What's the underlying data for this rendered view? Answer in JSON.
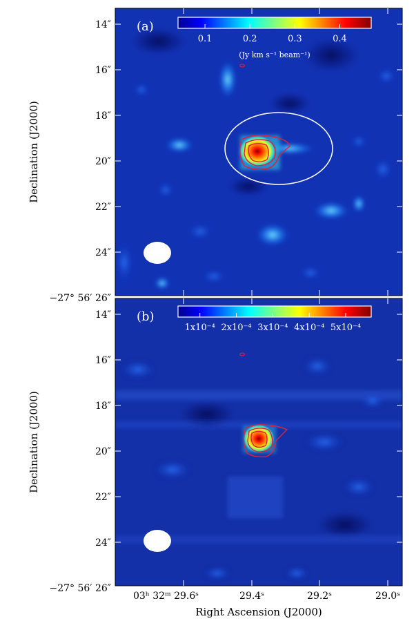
{
  "chart_data": [
    {
      "type": "heatmap",
      "panel_label": "(a)",
      "xlabel": "",
      "ylabel": "Declination (J2000)",
      "y_ticks": [
        "14″",
        "16″",
        "18″",
        "20″",
        "22″",
        "24″",
        "−27° 56′ 26″"
      ],
      "colorbar": {
        "ticks": [
          "0.1",
          "0.2",
          "0.3",
          "0.4"
        ],
        "tick_values": [
          0.1,
          0.2,
          0.3,
          0.4
        ],
        "range": [
          0.04,
          0.47
        ],
        "unit_label": "(Jy km s⁻¹ beam⁻¹)"
      },
      "source_peak": {
        "ra_s": 29.34,
        "dec_arcsec": 19.6
      },
      "aperture_ellipse": true,
      "beam": true
    },
    {
      "type": "heatmap",
      "panel_label": "(b)",
      "xlabel": "Right Ascension (J2000)",
      "ylabel": "Declination (J2000)",
      "x_ticks": [
        "03ʰ 32ᵐ 29.6ˢ",
        "29.4ˢ",
        "29.2ˢ",
        "29.0ˢ"
      ],
      "y_ticks": [
        "14″",
        "16″",
        "18″",
        "20″",
        "22″",
        "24″",
        "−27° 56′ 26″"
      ],
      "colorbar": {
        "ticks": [
          "1x10⁻⁴",
          "2x10⁻⁴",
          "3x10⁻⁴",
          "4x10⁻⁴",
          "5x10⁻⁴"
        ],
        "tick_values": [
          0.0001,
          0.0002,
          0.0003,
          0.0004,
          0.0005
        ],
        "range": [
          4e-05,
          0.00057
        ]
      },
      "source_peak": {
        "ra_s": 29.34,
        "dec_arcsec": 19.6
      },
      "beam": true
    }
  ]
}
